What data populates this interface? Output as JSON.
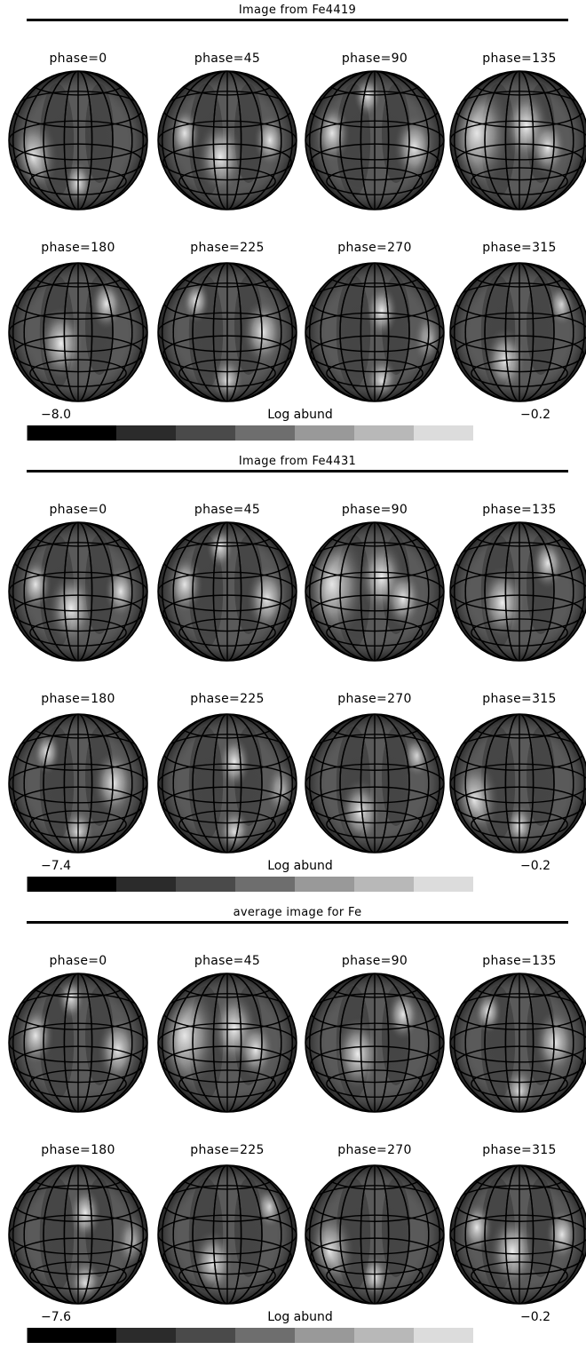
{
  "sections": [
    {
      "title": "Image from Fe4419",
      "phases": [
        "phase=0",
        "phase=45",
        "phase=90",
        "phase=135",
        "phase=180",
        "phase=225",
        "phase=270",
        "phase=315"
      ],
      "colorbar": {
        "min": "−8.0",
        "label": "Log abund",
        "max": "−0.2"
      }
    },
    {
      "title": "Image from Fe4431",
      "phases": [
        "phase=0",
        "phase=45",
        "phase=90",
        "phase=135",
        "phase=180",
        "phase=225",
        "phase=270",
        "phase=315"
      ],
      "colorbar": {
        "min": "−7.4",
        "label": "Log abund",
        "max": "−0.2"
      }
    },
    {
      "title": "average image for Fe",
      "phases": [
        "phase=0",
        "phase=45",
        "phase=90",
        "phase=135",
        "phase=180",
        "phase=225",
        "phase=270",
        "phase=315"
      ],
      "colorbar": {
        "min": "−7.6",
        "label": "Log abund",
        "max": "−0.2"
      }
    }
  ],
  "colorbar_colors": [
    "#000000",
    "#2b2b2b",
    "#4a4a4a",
    "#6e6e6e",
    "#999999",
    "#b8b8b8",
    "#dcdcdc"
  ],
  "sphere_colors": {
    "base": "#5a5a5a",
    "dark": "#1a1a1a",
    "bright": "#f4f4f4",
    "grid": "#000000"
  }
}
